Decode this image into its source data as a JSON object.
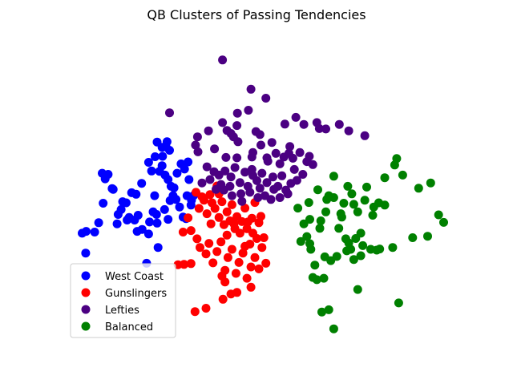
{
  "chart_data": {
    "type": "scatter",
    "title": "QB Clusters of Passing Tendencies",
    "xlabel": "",
    "ylabel": "",
    "axes_visible": false,
    "grid": false,
    "legend_position": "lower-left",
    "series": [
      {
        "name": "West Coast",
        "color": "#0000ff",
        "points": [
          [
            -3.3,
            1.65
          ],
          [
            -3.24,
            1.5
          ],
          [
            -3.18,
            1.62
          ],
          [
            -3.28,
            0.85
          ],
          [
            -3.08,
            1.22
          ],
          [
            -2.92,
            0.68
          ],
          [
            -2.89,
            0.89
          ],
          [
            -2.82,
            0.86
          ],
          [
            -2.76,
            0.47
          ],
          [
            -2.71,
            1.13
          ],
          [
            -2.98,
            0.55
          ],
          [
            -3.45,
            0.08
          ],
          [
            -3.37,
            0.33
          ],
          [
            -3.1,
            1.24
          ],
          [
            -2.62,
            1.09
          ],
          [
            -2.51,
            1.38
          ],
          [
            -2.37,
            1.94
          ],
          [
            -2.31,
            1.71
          ],
          [
            -2.24,
            2.09
          ],
          [
            -2.15,
            1.7
          ],
          [
            -2.1,
            2.34
          ],
          [
            -2.09,
            2.1
          ],
          [
            -2.04,
            1.6
          ],
          [
            -2.02,
            2.35
          ],
          [
            -2.0,
            2.49
          ],
          [
            -1.95,
            2.26
          ],
          [
            -1.98,
            1.48
          ],
          [
            -1.92,
            1.3
          ],
          [
            -1.86,
            1.26
          ],
          [
            -1.88,
            1.05
          ],
          [
            -1.82,
            0.95
          ],
          [
            -1.75,
            0.75
          ],
          [
            -1.68,
            0.48
          ],
          [
            -1.62,
            0.44
          ],
          [
            -2.25,
            1.05
          ],
          [
            -2.28,
            0.62
          ],
          [
            -2.2,
            0.32
          ],
          [
            -2.05,
            0.68
          ],
          [
            -1.94,
            0.92
          ],
          [
            -1.8,
            1.65
          ],
          [
            -1.72,
            1.9
          ],
          [
            -1.58,
            1.95
          ],
          [
            -1.65,
            1.76
          ],
          [
            -1.56,
            1.48
          ],
          [
            -2.35,
            0.35
          ],
          [
            -2.41,
            -0.75
          ],
          [
            -2.18,
            -0.33
          ],
          [
            -2.58,
            0.53
          ],
          [
            -2.65,
            0.4
          ],
          [
            -3.63,
            -0.48
          ],
          [
            -3.7,
            0.05
          ],
          [
            -2.37,
            0.03
          ],
          [
            -3.62,
            0.1
          ],
          [
            -2.2,
            2.48
          ],
          [
            -1.51,
            0.93
          ],
          [
            -1.47,
            1.05
          ],
          [
            -2.21,
            0.55
          ],
          [
            -1.52,
            0.8
          ],
          [
            -1.6,
            1.05
          ],
          [
            -2.8,
            0.4
          ],
          [
            -3.0,
            0.3
          ],
          [
            -2.5,
            0.15
          ],
          [
            -1.98,
            0.42
          ],
          [
            -2.1,
            1.85
          ],
          [
            -2.6,
            0.1
          ]
        ]
      },
      {
        "name": "Gunslingers",
        "color": "#ff0000",
        "points": [
          [
            -1.42,
            1.14
          ],
          [
            -1.36,
            0.71
          ],
          [
            -1.3,
            1.02
          ],
          [
            -1.26,
            0.93
          ],
          [
            -1.2,
            0.57
          ],
          [
            -1.14,
            1.08
          ],
          [
            -1.1,
            0.86
          ],
          [
            -1.04,
            0.71
          ],
          [
            -1.0,
            1.31
          ],
          [
            -0.96,
            0.47
          ],
          [
            -0.9,
            0.89
          ],
          [
            -0.86,
            0.28
          ],
          [
            -0.8,
            0.62
          ],
          [
            -0.74,
            0.38
          ],
          [
            -0.7,
            0.81
          ],
          [
            -0.64,
            0.17
          ],
          [
            -0.6,
            0.49
          ],
          [
            -0.54,
            0.05
          ],
          [
            -0.5,
            0.36
          ],
          [
            -0.44,
            0.72
          ],
          [
            -0.4,
            0.17
          ],
          [
            -0.34,
            -0.24
          ],
          [
            -0.3,
            0.45
          ],
          [
            -0.24,
            0.87
          ],
          [
            -0.2,
            -0.09
          ],
          [
            -0.16,
            0.33
          ],
          [
            -1.58,
            0.46
          ],
          [
            -1.52,
            0.12
          ],
          [
            -1.4,
            -0.1
          ],
          [
            -1.34,
            -0.33
          ],
          [
            -1.22,
            -0.5
          ],
          [
            -1.16,
            -0.22
          ],
          [
            -1.08,
            -0.74
          ],
          [
            -1.0,
            -0.44
          ],
          [
            -0.92,
            -0.18
          ],
          [
            -0.84,
            -0.94
          ],
          [
            -0.78,
            -0.6
          ],
          [
            -0.7,
            -0.38
          ],
          [
            -0.62,
            -1.02
          ],
          [
            -0.56,
            -0.73
          ],
          [
            -0.48,
            -0.48
          ],
          [
            -0.4,
            -1.15
          ],
          [
            -0.32,
            -0.85
          ],
          [
            -0.24,
            -0.6
          ],
          [
            -0.16,
            -0.9
          ],
          [
            -0.1,
            -0.33
          ],
          [
            -0.02,
            -0.75
          ],
          [
            -1.78,
            -0.79
          ],
          [
            -1.66,
            -0.78
          ],
          [
            -1.52,
            -0.76
          ],
          [
            -0.9,
            -1.09
          ],
          [
            -0.84,
            -1.25
          ],
          [
            -0.72,
            -1.57
          ],
          [
            -0.6,
            -1.53
          ],
          [
            -0.32,
            -1.39
          ],
          [
            -1.44,
            -2.04
          ],
          [
            -1.22,
            -1.95
          ],
          [
            -0.88,
            -1.71
          ],
          [
            -0.06,
            -0.07
          ],
          [
            -0.38,
            0.35
          ],
          [
            -0.12,
            0.5
          ],
          [
            -0.28,
            0.05
          ],
          [
            -1.68,
            0.08
          ],
          [
            -0.96,
            1.1
          ],
          [
            -0.66,
            0.3
          ],
          [
            -1.12,
            0.3
          ],
          [
            -0.44,
            -0.3
          ],
          [
            -0.8,
            0.0
          ]
        ]
      },
      {
        "name": "Lefties",
        "color": "#4b0082",
        "points": [
          [
            -0.89,
            4.67
          ],
          [
            -0.32,
            3.89
          ],
          [
            -0.02,
            3.65
          ],
          [
            -1.95,
            3.26
          ],
          [
            -1.39,
            2.62
          ],
          [
            -0.89,
            3.0
          ],
          [
            -0.67,
            2.62
          ],
          [
            -0.59,
            3.25
          ],
          [
            -0.37,
            3.33
          ],
          [
            -1.17,
            2.78
          ],
          [
            -0.8,
            2.79
          ],
          [
            -0.72,
            2.71
          ],
          [
            -0.6,
            2.92
          ],
          [
            -0.22,
            2.76
          ],
          [
            -0.14,
            2.68
          ],
          [
            0.58,
            3.14
          ],
          [
            1.0,
            3.0
          ],
          [
            0.74,
            2.95
          ],
          [
            0.36,
            2.96
          ],
          [
            1.18,
            2.83
          ],
          [
            1.45,
            2.95
          ],
          [
            1.64,
            2.78
          ],
          [
            1.96,
            2.65
          ],
          [
            0.46,
            2.36
          ],
          [
            1.05,
            2.84
          ],
          [
            -1.43,
            2.4
          ],
          [
            -1.38,
            2.22
          ],
          [
            -1.05,
            2.3
          ],
          [
            -0.82,
            2.07
          ],
          [
            -0.6,
            2.06
          ],
          [
            -0.58,
            2.49
          ],
          [
            -0.3,
            2.08
          ],
          [
            -0.28,
            2.2
          ],
          [
            -0.12,
            2.4
          ],
          [
            0.0,
            2.06
          ],
          [
            0.1,
            2.47
          ],
          [
            0.18,
            2.18
          ],
          [
            0.26,
            1.9
          ],
          [
            0.34,
            2.08
          ],
          [
            0.44,
            2.18
          ],
          [
            0.52,
            2.05
          ],
          [
            0.66,
            2.2
          ],
          [
            0.8,
            1.96
          ],
          [
            0.92,
            1.88
          ],
          [
            0.02,
            1.97
          ],
          [
            -1.2,
            1.82
          ],
          [
            -1.06,
            1.69
          ],
          [
            -0.96,
            1.6
          ],
          [
            -0.84,
            1.71
          ],
          [
            -0.72,
            1.55
          ],
          [
            -0.64,
            1.8
          ],
          [
            -0.54,
            1.4
          ],
          [
            -0.44,
            1.68
          ],
          [
            -0.38,
            1.3
          ],
          [
            -0.28,
            1.59
          ],
          [
            -0.2,
            1.45
          ],
          [
            -0.1,
            1.65
          ],
          [
            0.0,
            1.4
          ],
          [
            0.12,
            1.55
          ],
          [
            0.22,
            1.3
          ],
          [
            0.3,
            1.58
          ],
          [
            0.38,
            1.2
          ],
          [
            0.48,
            1.38
          ],
          [
            0.6,
            1.46
          ],
          [
            0.72,
            1.62
          ],
          [
            -1.3,
            1.39
          ],
          [
            -1.14,
            1.48
          ],
          [
            -1.02,
            1.22
          ],
          [
            -0.86,
            1.2
          ],
          [
            -0.7,
            1.05
          ],
          [
            -0.52,
            1.1
          ],
          [
            -0.34,
            1.14
          ],
          [
            -0.18,
            1.0
          ],
          [
            -0.04,
            1.05
          ],
          [
            0.14,
            1.22
          ],
          [
            0.26,
            1.0
          ],
          [
            0.42,
            1.1
          ],
          [
            -0.5,
            0.9
          ],
          [
            0.08,
            0.95
          ],
          [
            -0.14,
            1.25
          ],
          [
            0.55,
            1.75
          ],
          [
            -0.3,
            1.75
          ],
          [
            -0.92,
            1.35
          ],
          [
            0.85,
            2.1
          ],
          [
            -0.74,
            1.3
          ]
        ]
      },
      {
        "name": "Balanced",
        "color": "#008000",
        "points": [
          [
            0.84,
            0.87
          ],
          [
            0.74,
            0.3
          ],
          [
            1.02,
            1.21
          ],
          [
            0.62,
            0.72
          ],
          [
            0.86,
            0.42
          ],
          [
            1.34,
            1.0
          ],
          [
            1.34,
            1.57
          ],
          [
            1.24,
            1.05
          ],
          [
            1.62,
            1.3
          ],
          [
            1.7,
            1.1
          ],
          [
            1.18,
            0.62
          ],
          [
            1.5,
            0.48
          ],
          [
            1.48,
            0.57
          ],
          [
            1.08,
            0.38
          ],
          [
            1.96,
            0.93
          ],
          [
            1.74,
            0.82
          ],
          [
            2.0,
            1.28
          ],
          [
            2.24,
            0.86
          ],
          [
            2.36,
            1.53
          ],
          [
            2.56,
            1.87
          ],
          [
            2.6,
            2.04
          ],
          [
            2.14,
            0.75
          ],
          [
            2.12,
            0.53
          ],
          [
            1.82,
            0.62
          ],
          [
            1.64,
            -0.21
          ],
          [
            1.78,
            -0.09
          ],
          [
            1.6,
            -0.42
          ],
          [
            1.68,
            -0.38
          ],
          [
            1.88,
            -0.55
          ],
          [
            1.74,
            -0.65
          ],
          [
            1.92,
            -0.28
          ],
          [
            1.06,
            0.18
          ],
          [
            0.8,
            -0.04
          ],
          [
            0.68,
            -0.17
          ],
          [
            0.88,
            -0.38
          ],
          [
            0.96,
            -0.8
          ],
          [
            1.16,
            -0.58
          ],
          [
            1.4,
            -0.57
          ],
          [
            1.28,
            -0.68
          ],
          [
            1.58,
            -0.1
          ],
          [
            0.86,
            -0.23
          ],
          [
            0.92,
            -1.13
          ],
          [
            1.0,
            -1.19
          ],
          [
            1.14,
            -1.15
          ],
          [
            1.82,
            -1.45
          ],
          [
            1.1,
            -2.05
          ],
          [
            1.24,
            -1.99
          ],
          [
            1.34,
            -2.5
          ],
          [
            2.2,
            -0.4
          ],
          [
            2.26,
            -0.37
          ],
          [
            2.52,
            -0.33
          ],
          [
            2.92,
            -0.07
          ],
          [
            3.22,
            -0.03
          ],
          [
            3.54,
            0.34
          ],
          [
            3.44,
            0.54
          ],
          [
            3.04,
            1.25
          ],
          [
            3.28,
            1.39
          ],
          [
            2.72,
            1.6
          ],
          [
            2.64,
            -1.81
          ],
          [
            2.08,
            -0.38
          ],
          [
            1.44,
            0.18
          ],
          [
            1.54,
            0.85
          ],
          [
            1.2,
            0.95
          ],
          [
            1.88,
            0.05
          ],
          [
            2.36,
            0.8
          ]
        ]
      }
    ]
  }
}
